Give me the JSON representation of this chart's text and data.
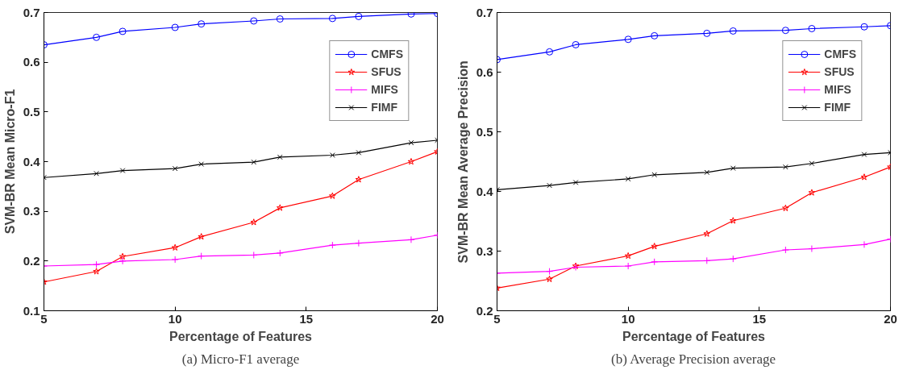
{
  "chart_data": [
    {
      "type": "line",
      "xlabel": "Percentage of Features",
      "ylabel": "SVM-BR Mean Micro-F1",
      "annotations": [
        "(a) Micro-F1 average"
      ],
      "x": [
        5,
        7,
        8,
        10,
        11,
        13,
        14,
        16,
        17,
        19,
        20
      ],
      "xlim": [
        5,
        20
      ],
      "xticks": [
        5,
        10,
        15,
        20
      ],
      "ylim": [
        0.1,
        0.7
      ],
      "yticks": [
        0.1,
        0.2,
        0.3,
        0.4,
        0.5,
        0.6,
        0.7
      ],
      "grid": false,
      "legend": "top right",
      "line_style": "solid",
      "series": [
        {
          "name": "CMFS",
          "color": "#0000ff",
          "marker": "circle",
          "values": [
            0.635,
            0.65,
            0.662,
            0.67,
            0.677,
            0.683,
            0.687,
            0.688,
            0.692,
            0.697,
            0.698
          ]
        },
        {
          "name": "SFUS",
          "color": "#ff0000",
          "marker": "star",
          "values": [
            0.158,
            0.179,
            0.209,
            0.227,
            0.249,
            0.278,
            0.307,
            0.331,
            0.364,
            0.4,
            0.42
          ]
        },
        {
          "name": "MIFS",
          "color": "#ff00ff",
          "marker": "cross",
          "values": [
            0.19,
            0.193,
            0.2,
            0.203,
            0.21,
            0.212,
            0.216,
            0.232,
            0.236,
            0.243,
            0.252
          ]
        },
        {
          "name": "FIMF",
          "color": "#000000",
          "marker": "x",
          "values": [
            0.368,
            0.376,
            0.382,
            0.386,
            0.395,
            0.399,
            0.409,
            0.413,
            0.418,
            0.438,
            0.443
          ]
        }
      ]
    },
    {
      "type": "line",
      "xlabel": "Percentage of Features",
      "ylabel": "SVM-BR Mean Average Precision",
      "annotations": [
        "(b) Average Precision average"
      ],
      "x": [
        5,
        7,
        8,
        10,
        11,
        13,
        14,
        16,
        17,
        19,
        20
      ],
      "xlim": [
        5,
        20
      ],
      "xticks": [
        5,
        10,
        15,
        20
      ],
      "ylim": [
        0.2,
        0.7
      ],
      "yticks": [
        0.2,
        0.3,
        0.4,
        0.5,
        0.6,
        0.7
      ],
      "grid": false,
      "legend": "top right",
      "line_style": "solid",
      "series": [
        {
          "name": "CMFS",
          "color": "#0000ff",
          "marker": "circle",
          "values": [
            0.621,
            0.634,
            0.646,
            0.655,
            0.661,
            0.665,
            0.669,
            0.67,
            0.673,
            0.676,
            0.678
          ]
        },
        {
          "name": "SFUS",
          "color": "#ff0000",
          "marker": "star",
          "values": [
            0.238,
            0.253,
            0.275,
            0.292,
            0.308,
            0.329,
            0.351,
            0.372,
            0.398,
            0.424,
            0.441
          ]
        },
        {
          "name": "MIFS",
          "color": "#ff00ff",
          "marker": "cross",
          "values": [
            0.263,
            0.266,
            0.273,
            0.275,
            0.282,
            0.284,
            0.287,
            0.302,
            0.304,
            0.311,
            0.32
          ]
        },
        {
          "name": "FIMF",
          "color": "#000000",
          "marker": "x",
          "values": [
            0.403,
            0.41,
            0.415,
            0.421,
            0.428,
            0.432,
            0.439,
            0.441,
            0.447,
            0.462,
            0.465
          ]
        }
      ]
    }
  ]
}
